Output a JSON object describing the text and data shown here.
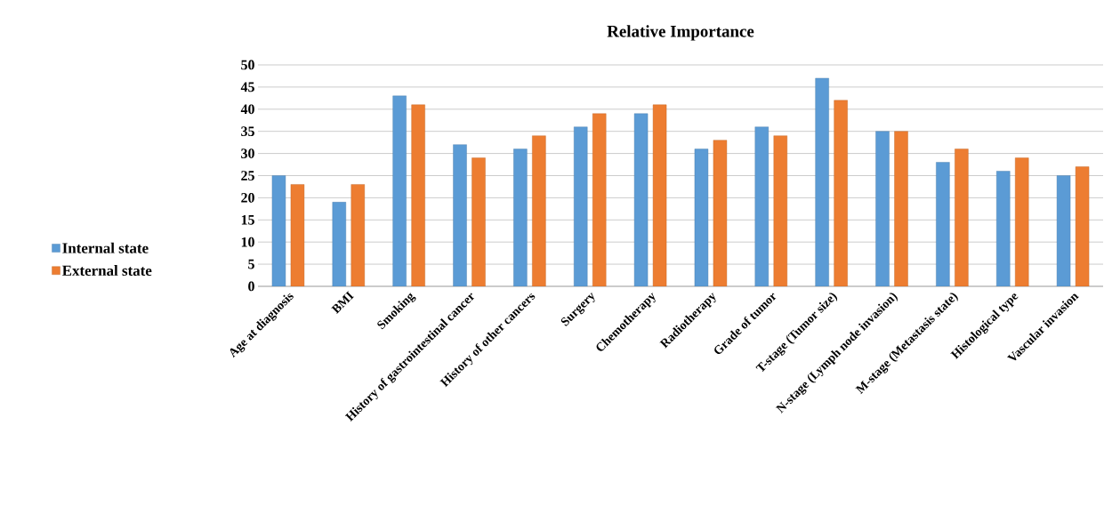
{
  "chart_data": {
    "type": "bar",
    "title": "Relative Importance",
    "categories": [
      "Age at diagnosis",
      "BMI",
      "Smoking",
      "History of gastrointestinal cancer",
      "History of other cancers",
      "Surgery",
      "Chemotherapy",
      "Radiotherapy",
      "Grade of tumor",
      "T-stage (Tumor size)",
      "N-stage (Lymph node invasion)",
      "M-stage (Metastasis state)",
      "Histological type",
      "Vascular invasion"
    ],
    "series": [
      {
        "name": "Internal state",
        "color": "#5b9bd5",
        "values": [
          25,
          19,
          43,
          32,
          31,
          36,
          39,
          31,
          36,
          47,
          35,
          28,
          26,
          25
        ]
      },
      {
        "name": "External state",
        "color": "#ed7d31",
        "values": [
          23,
          23,
          41,
          29,
          34,
          39,
          41,
          33,
          34,
          42,
          35,
          31,
          29,
          27
        ]
      }
    ],
    "ylim": [
      0,
      50
    ],
    "yticks": [
      0,
      5,
      10,
      15,
      20,
      25,
      30,
      35,
      40,
      45,
      50
    ],
    "grid": "y",
    "legend": "left"
  }
}
